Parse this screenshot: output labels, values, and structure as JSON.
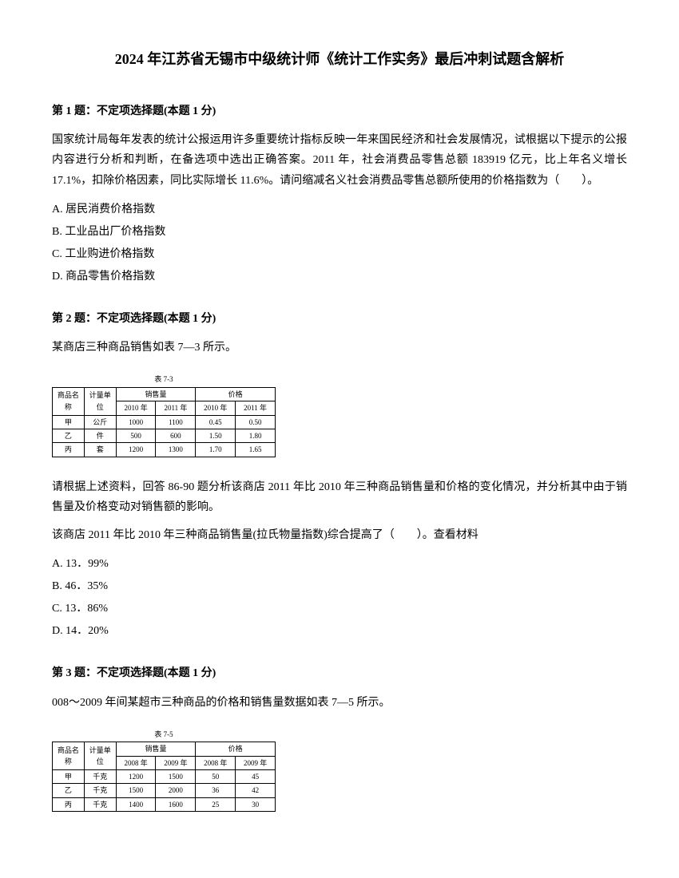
{
  "title": "2024 年江苏省无锡市中级统计师《统计工作实务》最后冲刺试题含解析",
  "q1": {
    "header": "第 1 题：不定项选择题(本题 1 分)",
    "body": "国家统计局每年发表的统计公报运用许多重要统计指标反映一年来国民经济和社会发展情况，试根据以下提示的公报内容进行分析和判断，在备选项中选出正确答案。2011 年，社会消费品零售总额 183919 亿元，比上年名义增长 17.1%，扣除价格因素，同比实际增长 11.6%。请问缩减名义社会消费品零售总额所使用的价格指数为（　　）。",
    "opts": {
      "a": "A. 居民消费价格指数",
      "b": "B. 工业品出厂价格指数",
      "c": "C. 工业购进价格指数",
      "d": "D. 商品零售价格指数"
    }
  },
  "q2": {
    "header": "第 2 题：不定项选择题(本题 1 分)",
    "intro": "某商店三种商品销售如表 7—3 所示。",
    "table": {
      "caption": "表 7-3",
      "h1": "商品名称",
      "h2": "计量单位",
      "h3": "销售量",
      "h4": "价格",
      "sub1": "2010 年",
      "sub2": "2011 年",
      "sub3": "2010 年",
      "sub4": "2011 年",
      "rows": [
        [
          "甲",
          "公斤",
          "1000",
          "1100",
          "0.45",
          "0.50"
        ],
        [
          "乙",
          "件",
          "500",
          "600",
          "1.50",
          "1.80"
        ],
        [
          "丙",
          "套",
          "1200",
          "1300",
          "1.70",
          "1.65"
        ]
      ]
    },
    "body1": "请根据上述资料，回答 86-90 题分析该商店 2011 年比 2010 年三种商品销售量和价格的变化情况，并分析其中由于销售量及价格变动对销售额的影响。",
    "body2": "该商店 2011 年比 2010 年三种商品销售量(拉氏物量指数)综合提高了（　　）。查看材料",
    "opts": {
      "a": "A. 13．99%",
      "b": "B. 46．35%",
      "c": "C. 13．86%",
      "d": "D. 14．20%"
    }
  },
  "q3": {
    "header": "第 3 题：不定项选择题(本题 1 分)",
    "intro": "008～2009 年间某超市三种商品的价格和销售量数据如表 7—5 所示。",
    "table": {
      "caption": "表 7-5",
      "h1": "商品名称",
      "h2": "计量单位",
      "h3": "销售量",
      "h4": "价格",
      "sub1": "2008 年",
      "sub2": "2009 年",
      "sub3": "2008 年",
      "sub4": "2009 年",
      "rows": [
        [
          "甲",
          "千克",
          "1200",
          "1500",
          "50",
          "45"
        ],
        [
          "乙",
          "千克",
          "1500",
          "2000",
          "36",
          "42"
        ],
        [
          "丙",
          "千克",
          "1400",
          "1600",
          "25",
          "30"
        ]
      ]
    }
  }
}
